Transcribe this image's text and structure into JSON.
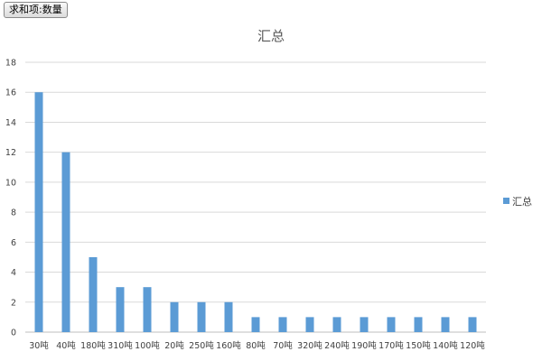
{
  "pivot_field_button": {
    "label": "求和项:数量"
  },
  "chart_data": {
    "type": "bar",
    "title": "汇总",
    "xlabel": "",
    "ylabel": "",
    "categories": [
      "30吨",
      "40吨",
      "180吨",
      "310吨",
      "100吨",
      "20吨",
      "250吨",
      "160吨",
      "80吨",
      "70吨",
      "320吨",
      "240吨",
      "190吨",
      "170吨",
      "150吨",
      "140吨",
      "120吨"
    ],
    "series": [
      {
        "name": "汇总",
        "values": [
          16,
          12,
          5,
          3,
          3,
          2,
          2,
          2,
          1,
          1,
          1,
          1,
          1,
          1,
          1,
          1,
          1
        ],
        "color": "#5b9bd5"
      }
    ],
    "ylim": [
      0,
      18
    ],
    "yticks": [
      0,
      2,
      4,
      6,
      8,
      10,
      12,
      14,
      16,
      18
    ],
    "grid": true,
    "legend": "right"
  }
}
